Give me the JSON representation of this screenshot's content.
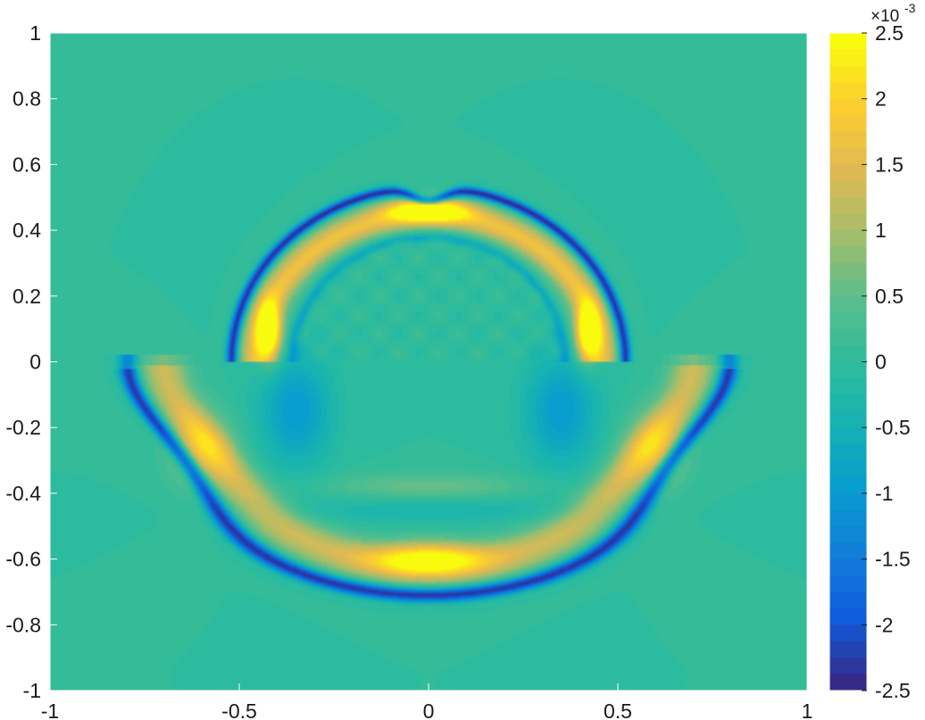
{
  "chart_data": {
    "type": "heatmap",
    "title": "",
    "xlabel": "",
    "ylabel": "",
    "xlim": [
      -1,
      1
    ],
    "ylim": [
      -1,
      1
    ],
    "x_ticks": [
      -1,
      -0.5,
      0,
      0.5,
      1
    ],
    "y_ticks": [
      -1,
      -0.8,
      -0.6,
      -0.4,
      -0.2,
      0,
      0.2,
      0.4,
      0.6,
      0.8,
      1
    ],
    "x_tick_labels": [
      "-1",
      "-0.5",
      "0",
      "0.5",
      "1"
    ],
    "y_tick_labels": [
      "-1",
      "-0.8",
      "-0.6",
      "-0.4",
      "-0.2",
      "0",
      "0.2",
      "0.4",
      "0.6",
      "0.8",
      "1"
    ],
    "grid": false,
    "colormap": "parula",
    "colorbar": {
      "range": [
        -2.5,
        2.5
      ],
      "ticks": [
        -2.5,
        -2,
        -1.5,
        -1,
        -0.5,
        0,
        0.5,
        1,
        1.5,
        2,
        2.5
      ],
      "tick_labels": [
        "-2.5",
        "-2",
        "-1.5",
        "-1",
        "-0.5",
        "0",
        "0.5",
        "1",
        "1.5",
        "2",
        "2.5"
      ],
      "multiplier_base": "×10",
      "multiplier_exponent": "-3",
      "levels": 40
    },
    "background_value": 0,
    "features": [
      {
        "name": "upper-arc-trough",
        "kind": "arc",
        "cx": 0,
        "cy": 0,
        "rx": 0.52,
        "ry": 0.53,
        "value": -2.5,
        "dip_at_center": 0.04
      },
      {
        "name": "upper-arc-crest",
        "kind": "arc",
        "cx": 0,
        "cy": 0,
        "rx": 0.455,
        "ry": 0.45,
        "value": 1.7
      },
      {
        "name": "upper-arc-inner-trough",
        "kind": "arc",
        "cx": 0,
        "cy": 0,
        "rx": 0.36,
        "ry": 0.38,
        "value": -0.7
      },
      {
        "name": "top-peak",
        "kind": "blob",
        "cx": 0,
        "cy": 0.46,
        "rx": 0.09,
        "ry": 0.03,
        "value": 2.5
      },
      {
        "name": "left-peak",
        "kind": "blob",
        "cx": -0.42,
        "cy": 0.09,
        "rx": 0.03,
        "ry": 0.08,
        "value": 2.5
      },
      {
        "name": "right-peak",
        "kind": "blob",
        "cx": 0.42,
        "cy": 0.09,
        "rx": 0.03,
        "ry": 0.08,
        "value": 2.5
      },
      {
        "name": "lower-front-trough",
        "kind": "lobe",
        "y_top": -0.02,
        "y_bottom": -0.71,
        "half_width": 0.75,
        "value": -2.4
      },
      {
        "name": "lower-front-crest",
        "kind": "lobe",
        "y_top": -0.02,
        "y_bottom": -0.62,
        "half_width": 0.66,
        "value": 1.3
      },
      {
        "name": "bottom-peak",
        "kind": "blob",
        "cx": 0,
        "cy": -0.6,
        "rx": 0.14,
        "ry": 0.05,
        "value": 1.8
      },
      {
        "name": "left-lobe-crest",
        "kind": "blob",
        "cx": -0.6,
        "cy": -0.27,
        "rx": 0.08,
        "ry": 0.11,
        "value": 1.0
      },
      {
        "name": "right-lobe-crest",
        "kind": "blob",
        "cx": 0.6,
        "cy": -0.27,
        "rx": 0.08,
        "ry": 0.11,
        "value": 1.0
      },
      {
        "name": "left-inner-trough",
        "kind": "blob",
        "cx": -0.35,
        "cy": -0.15,
        "rx": 0.09,
        "ry": 0.16,
        "value": -1.0
      },
      {
        "name": "right-inner-trough",
        "kind": "blob",
        "cx": 0.35,
        "cy": -0.15,
        "rx": 0.09,
        "ry": 0.16,
        "value": -1.0
      },
      {
        "name": "center-inner-crest",
        "kind": "blob",
        "cx": 0,
        "cy": -0.38,
        "rx": 0.25,
        "ry": 0.04,
        "value": 0.6
      },
      {
        "name": "center-inner-trough",
        "kind": "blob",
        "cx": 0,
        "cy": -0.45,
        "rx": 0.35,
        "ry": 0.04,
        "value": -0.4
      }
    ]
  }
}
